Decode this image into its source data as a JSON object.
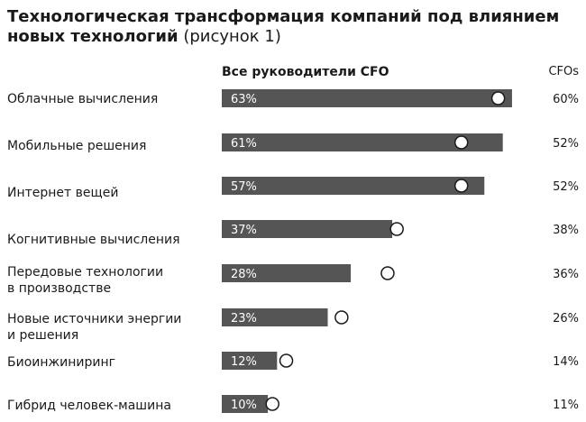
{
  "title": {
    "bold": "Технологическая трансформация компаний под влиянием новых технологий",
    "rest": " (рисунок 1)"
  },
  "legend": {
    "all_leaders": "Все руководители CFO",
    "cfos": "CFOs"
  },
  "colors": {
    "bar": "#555555",
    "bar_text": "#ffffff",
    "marker_fill": "#ffffff",
    "marker_stroke": "#1a1a1a"
  },
  "chart_data": {
    "type": "bar",
    "orientation": "horizontal",
    "value_suffix": "%",
    "categories": [
      [
        "Облачные вычисления"
      ],
      [
        "Мобильные решения"
      ],
      [
        "Интернет вещей"
      ],
      [
        "Когнитивные вычисления"
      ],
      [
        "Передовые технологии",
        "в производстве"
      ],
      [
        "Новые источники энергии",
        "и решения"
      ],
      [
        "Биоинжиниринг"
      ],
      [
        "Гибрид человек-машина"
      ]
    ],
    "series": [
      {
        "name": "Все руководители",
        "values": [
          63,
          61,
          57,
          37,
          28,
          23,
          12,
          10
        ]
      },
      {
        "name": "CFOs",
        "values": [
          60,
          52,
          52,
          38,
          36,
          26,
          14,
          11
        ]
      }
    ]
  }
}
